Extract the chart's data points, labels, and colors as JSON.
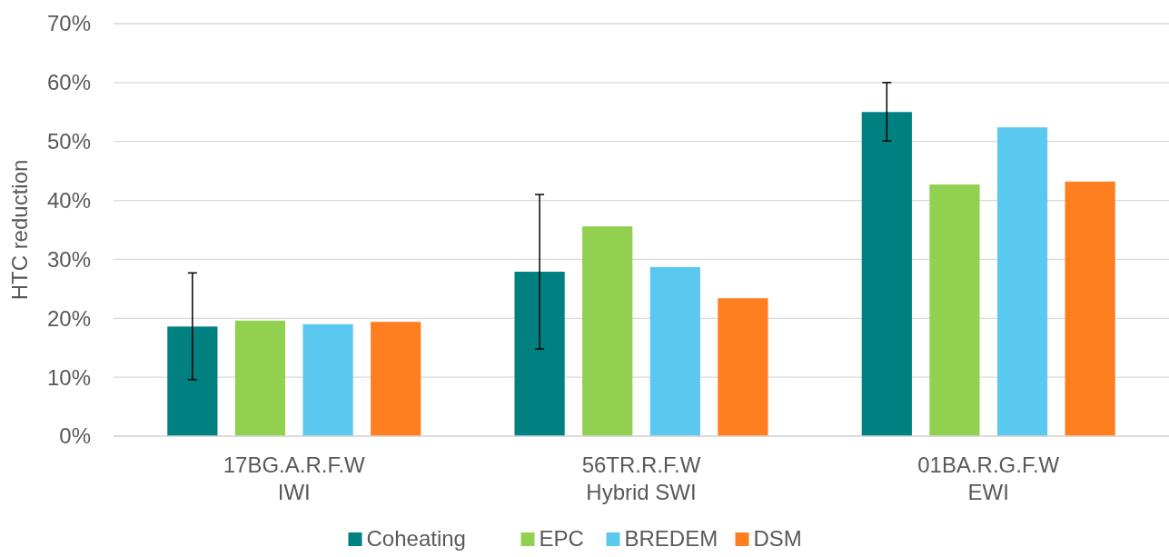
{
  "chart_data": {
    "type": "bar",
    "ylabel": "HTC reduction",
    "categories": [
      "17BG.A.R.F.W\nIWI",
      "56TR.R.F.W\nHybrid SWI",
      "01BA.R.G.F.W\nEWI"
    ],
    "series": [
      {
        "name": "Coheating",
        "color": "#008080",
        "values": [
          18.6,
          27.9,
          55.0
        ],
        "errors": [
          [
            9.6,
            27.7
          ],
          [
            14.8,
            41.0
          ],
          [
            50.1,
            60.0
          ]
        ]
      },
      {
        "name": "EPC",
        "color": "#92d050",
        "values": [
          19.6,
          35.6,
          42.7
        ]
      },
      {
        "name": "BREDEM",
        "color": "#5bc8f0",
        "values": [
          19.0,
          28.7,
          52.4
        ]
      },
      {
        "name": "DSM",
        "color": "#ff7f20",
        "values": [
          19.4,
          23.4,
          43.2
        ]
      }
    ],
    "ylim": [
      0,
      70
    ],
    "yticks": [
      {
        "value": 0,
        "label": "0%"
      },
      {
        "value": 10,
        "label": "10%"
      },
      {
        "value": 20,
        "label": "20%"
      },
      {
        "value": 30,
        "label": "30%"
      },
      {
        "value": 40,
        "label": "40%"
      },
      {
        "value": 50,
        "label": "50%"
      },
      {
        "value": 60,
        "label": "60%"
      },
      {
        "value": 70,
        "label": "70%"
      }
    ],
    "grid": "y",
    "legend": "bottom"
  }
}
